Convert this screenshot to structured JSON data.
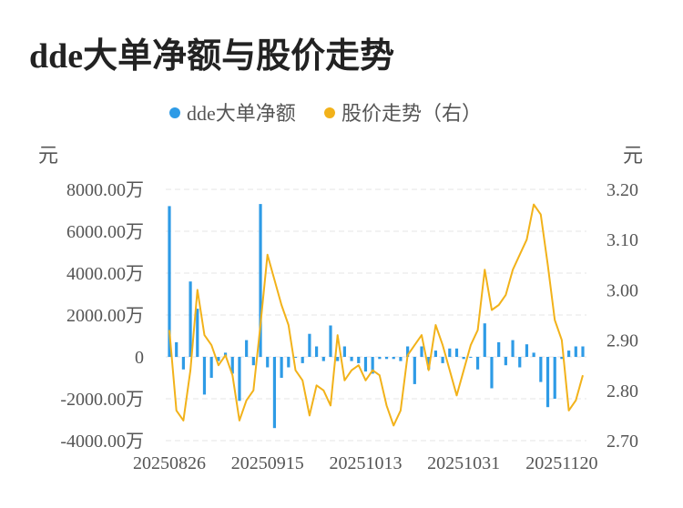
{
  "title": "dde大单净额与股价走势",
  "chart_data": {
    "type": "bar+line",
    "legend": [
      {
        "name": "dde大单净额",
        "color": "#2e9be6"
      },
      {
        "name": "股价走势（右）",
        "color": "#f2b21a"
      }
    ],
    "legend_placement": "top-center",
    "left_unit": "元",
    "right_unit": "元",
    "left_axis": {
      "min": -4000,
      "max": 8000,
      "ticks": [
        8000,
        6000,
        4000,
        2000,
        0,
        -2000,
        -4000
      ],
      "tick_labels": [
        "8000.00万",
        "6000.00万",
        "4000.00万",
        "2000.00万",
        "0",
        "-2000.00万",
        "-4000.00万"
      ]
    },
    "right_axis": {
      "min": 2.7,
      "max": 3.2,
      "ticks": [
        3.2,
        3.1,
        3.0,
        2.9,
        2.8,
        2.7
      ],
      "tick_labels": [
        "3.20",
        "3.10",
        "3.00",
        "2.90",
        "2.80",
        "2.70"
      ]
    },
    "x_tick_labels": [
      "20250826",
      "20250915",
      "20251013",
      "20251031",
      "20251120"
    ],
    "x_tick_indices": [
      0,
      14,
      28,
      42,
      56
    ],
    "grid": true,
    "bar_values": [
      7200,
      700,
      -600,
      3600,
      2300,
      -1800,
      -1000,
      -200,
      200,
      -800,
      -2100,
      800,
      -400,
      7300,
      -500,
      -3400,
      -1000,
      -500,
      0,
      -300,
      1100,
      500,
      -200,
      1500,
      -200,
      500,
      -200,
      -300,
      -700,
      -800,
      -100,
      -100,
      -100,
      -200,
      500,
      -1300,
      500,
      -600,
      300,
      -300,
      400,
      400,
      -100,
      0,
      -600,
      1600,
      -1500,
      700,
      -400,
      800,
      -500,
      600,
      200,
      -1200,
      -2400,
      -2000,
      -100,
      300,
      500,
      500
    ],
    "price_values": [
      2.92,
      2.76,
      2.74,
      2.84,
      3.0,
      2.91,
      2.89,
      2.85,
      2.87,
      2.83,
      2.74,
      2.78,
      2.8,
      2.93,
      3.07,
      3.02,
      2.97,
      2.93,
      2.84,
      2.82,
      2.75,
      2.81,
      2.8,
      2.77,
      2.91,
      2.82,
      2.84,
      2.85,
      2.82,
      2.84,
      2.83,
      2.77,
      2.73,
      2.76,
      2.87,
      2.89,
      2.91,
      2.84,
      2.93,
      2.89,
      2.84,
      2.79,
      2.84,
      2.89,
      2.92,
      3.04,
      2.96,
      2.97,
      2.99,
      3.04,
      3.07,
      3.1,
      3.17,
      3.15,
      3.05,
      2.94,
      2.9,
      2.76,
      2.78,
      2.83
    ]
  }
}
